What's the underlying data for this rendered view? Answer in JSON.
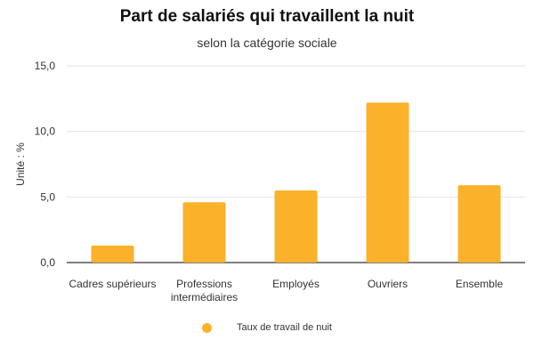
{
  "chart_data": {
    "type": "bar",
    "title": "Part de salariés qui travaillent la nuit",
    "subtitle": "selon la catégorie sociale",
    "ylabel": "Unité : %",
    "xlabel": "",
    "ylim": [
      0,
      15
    ],
    "yticks": [
      0,
      5,
      10,
      15
    ],
    "ytick_labels": [
      "0,0",
      "5,0",
      "10,0",
      "15,0"
    ],
    "grid": true,
    "legend_position": "bottom",
    "categories": [
      [
        "Cadres supérieurs"
      ],
      [
        "Professions",
        "intermédiaires"
      ],
      [
        "Employés"
      ],
      [
        "Ouvriers"
      ],
      [
        "Ensemble"
      ]
    ],
    "series": [
      {
        "name": "Taux de travail de nuit",
        "values": [
          1.3,
          4.6,
          5.5,
          12.2,
          5.9
        ],
        "color": "#fbb12a"
      }
    ]
  }
}
